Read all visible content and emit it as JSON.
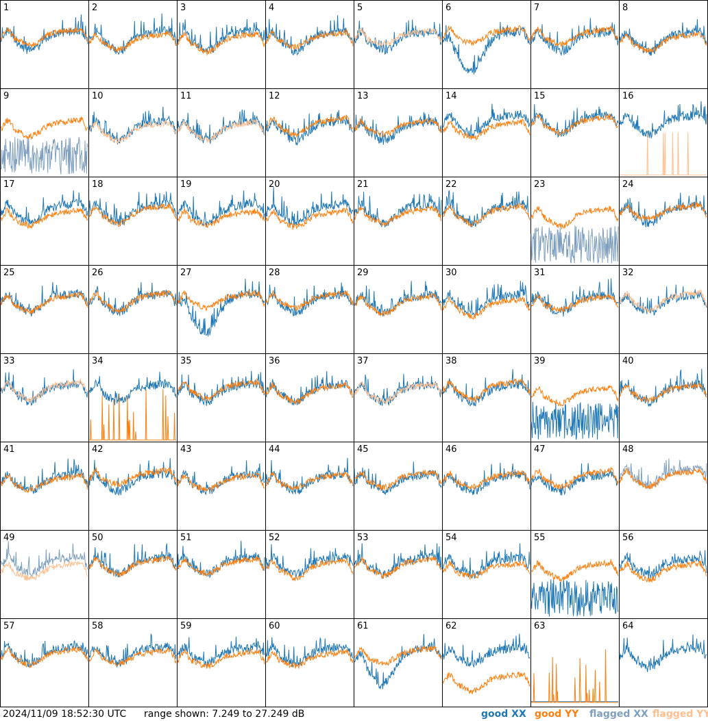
{
  "chart_data": {
    "type": "line",
    "panels": {
      "rows": 8,
      "cols": 8,
      "labels": [
        "1",
        "2",
        "3",
        "4",
        "5",
        "6",
        "7",
        "8",
        "9",
        "10",
        "11",
        "12",
        "13",
        "14",
        "15",
        "16",
        "17",
        "18",
        "19",
        "20",
        "21",
        "22",
        "23",
        "24",
        "25",
        "26",
        "27",
        "28",
        "29",
        "30",
        "31",
        "32",
        "33",
        "34",
        "35",
        "36",
        "37",
        "38",
        "39",
        "40",
        "41",
        "42",
        "43",
        "44",
        "45",
        "46",
        "47",
        "48",
        "49",
        "50",
        "51",
        "52",
        "53",
        "54",
        "55",
        "56",
        "57",
        "58",
        "59",
        "60",
        "61",
        "62",
        "63",
        "64"
      ]
    },
    "ylim": [
      7.249,
      27.249
    ],
    "series": [
      {
        "name": "good XX",
        "color": "#1f77b4"
      },
      {
        "name": "good YY",
        "color": "#ff7f0e"
      },
      {
        "name": "flagged XX",
        "color": "#7f9fbf"
      },
      {
        "name": "flagged YY",
        "color": "#ffbf8f"
      }
    ],
    "flagged_xx": [
      9,
      23,
      48,
      49
    ],
    "flagged_yy": [
      5,
      10,
      11,
      16,
      32,
      33,
      37,
      49
    ],
    "special": {
      "6": "xx-dip",
      "9": "xx-spikes",
      "16": "yy-spike",
      "23": "xx-noisy",
      "27": "xx-dip",
      "34": "yy-spikes",
      "39": "xx-spikes",
      "55": "xx-spikes",
      "61": "xx-dip",
      "62": "yy-low",
      "63": "both-low",
      "64": "xx-only"
    }
  },
  "footer": {
    "timestamp": "2024/11/09 18:52:30 UTC",
    "range_text": "range shown: 7.249 to 27.249 dB",
    "legend_good_xx": "good XX",
    "legend_good_yy": "good YY",
    "legend_flagged_xx": "flagged XX",
    "legend_flagged_yy": "flagged YY"
  }
}
